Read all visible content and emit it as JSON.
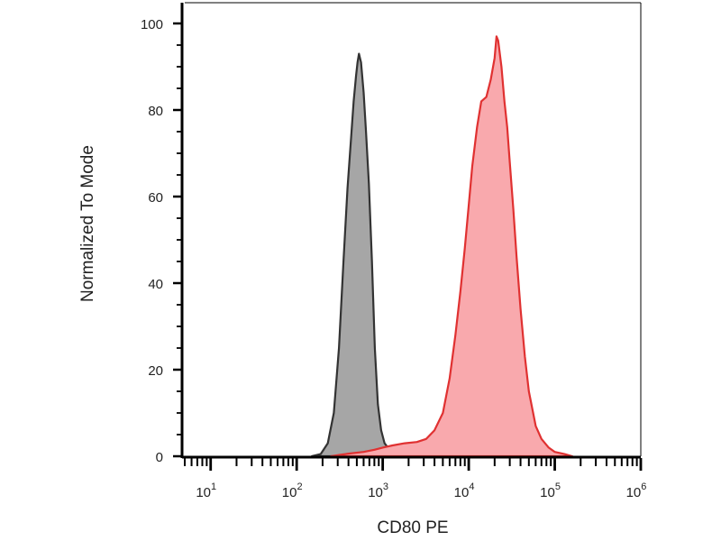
{
  "chart_data": {
    "type": "area",
    "xlabel": "CD80 PE",
    "ylabel": "Normalized To Mode",
    "x_scale": "log",
    "xlim": [
      5,
      1000000
    ],
    "ylim": [
      0,
      100
    ],
    "y_ticks": [
      0,
      20,
      40,
      60,
      80,
      100
    ],
    "y_tick_labels": [
      "0",
      "20",
      "40",
      "60",
      "80",
      "100"
    ],
    "x_ticks": [
      10,
      100,
      1000,
      10000,
      100000,
      1000000
    ],
    "x_tick_base": [
      "10",
      "10",
      "10",
      "10",
      "10",
      "10"
    ],
    "x_tick_exp": [
      "1",
      "2",
      "3",
      "4",
      "5",
      "6"
    ],
    "grid": false,
    "legend": "none",
    "series": [
      {
        "color": "#333333",
        "fill": "#a6a6a6",
        "points": [
          [
            150,
            0
          ],
          [
            190,
            0.5
          ],
          [
            230,
            3
          ],
          [
            270,
            10
          ],
          [
            310,
            25
          ],
          [
            350,
            45
          ],
          [
            390,
            62
          ],
          [
            430,
            74
          ],
          [
            460,
            82
          ],
          [
            490,
            88
          ],
          [
            510,
            91
          ],
          [
            530,
            93
          ],
          [
            560,
            91
          ],
          [
            600,
            84
          ],
          [
            640,
            75
          ],
          [
            690,
            63
          ],
          [
            750,
            45
          ],
          [
            810,
            25
          ],
          [
            880,
            12
          ],
          [
            960,
            6
          ],
          [
            1050,
            3
          ],
          [
            1200,
            1.5
          ],
          [
            1400,
            0.5
          ],
          [
            1700,
            0
          ]
        ]
      },
      {
        "color": "#e03131",
        "fill": "#f9a9ad",
        "points": [
          [
            250,
            0
          ],
          [
            400,
            0.6
          ],
          [
            600,
            1
          ],
          [
            800,
            1.5
          ],
          [
            1000,
            2
          ],
          [
            1300,
            2.5
          ],
          [
            1800,
            3
          ],
          [
            2500,
            3.3
          ],
          [
            3200,
            4
          ],
          [
            4000,
            6
          ],
          [
            5000,
            10
          ],
          [
            6000,
            18
          ],
          [
            7000,
            28
          ],
          [
            8000,
            38
          ],
          [
            9000,
            48
          ],
          [
            10000,
            58
          ],
          [
            11000,
            67
          ],
          [
            12500,
            76
          ],
          [
            14000,
            82
          ],
          [
            16000,
            83
          ],
          [
            18000,
            87
          ],
          [
            20000,
            92
          ],
          [
            21000,
            97
          ],
          [
            22000,
            96
          ],
          [
            24000,
            90
          ],
          [
            26000,
            82
          ],
          [
            28000,
            76
          ],
          [
            30000,
            68
          ],
          [
            33000,
            57
          ],
          [
            36000,
            46
          ],
          [
            40000,
            34
          ],
          [
            45000,
            23
          ],
          [
            50000,
            15
          ],
          [
            60000,
            7
          ],
          [
            70000,
            4
          ],
          [
            85000,
            2
          ],
          [
            100000,
            1
          ],
          [
            130000,
            0.5
          ],
          [
            160000,
            0
          ]
        ]
      }
    ]
  }
}
